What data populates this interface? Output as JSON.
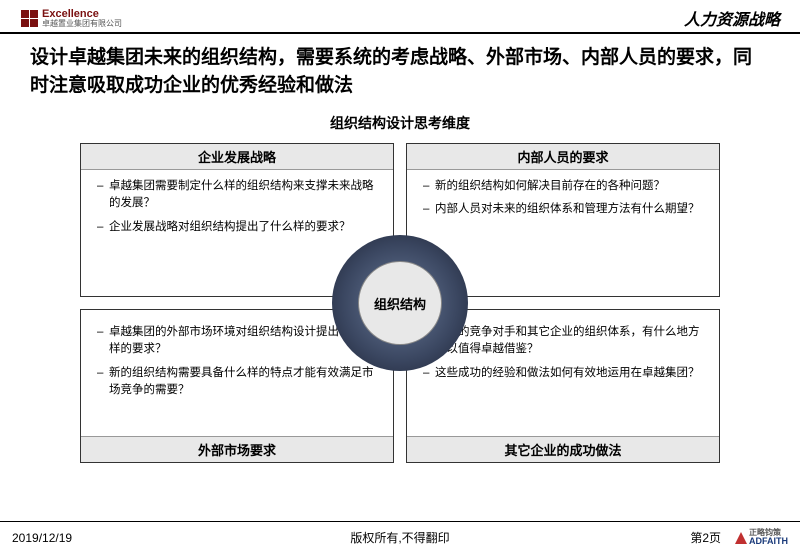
{
  "header": {
    "logo_en": "Excellence",
    "logo_cn": "卓越置业集团有限公司",
    "right_title": "人力资源战略"
  },
  "title": "设计卓越集团未来的组织结构，需要系统的考虑战略、外部市场、内部人员的要求，同时注意吸取成功企业的优秀经验和做法",
  "subtitle": "组织结构设计思考维度",
  "center_label": "组织结构",
  "quads": {
    "tl": {
      "header": "企业发展战略",
      "items": [
        "卓越集团需要制定什么样的组织结构来支撑未来战略的发展？",
        "企业发展战略对组织结构提出了什么样的要求？"
      ]
    },
    "tr": {
      "header": "内部人员的要求",
      "items": [
        "新的组织结构如何解决目前存在的各种问题？",
        "内部人员对未来的组织体系和管理方法有什么期望？"
      ]
    },
    "bl": {
      "header": "外部市场要求",
      "items": [
        "卓越集团的外部市场环境对组织结构设计提出了什么样的要求？",
        "新的组织结构需要具备什么样的特点才能有效满足市场竞争的需要？"
      ]
    },
    "br": {
      "header": "其它企业的成功做法",
      "items": [
        "卓越的竞争对手和其它企业的组织体系，有什么地方可以值得卓越借鉴？",
        "这些成功的经验和做法如何有效地运用在卓越集团？"
      ]
    }
  },
  "footer": {
    "date": "2019/12/19",
    "copyright": "版权所有,不得翻印",
    "page": "第2页",
    "adfaith_en": "ADFAITH",
    "adfaith_cn": "正略钧策"
  },
  "colors": {
    "brand_red": "#7a1010",
    "circle_dark": "#1c2233",
    "circle_mid": "#3a4660",
    "quad_header_bg": "#e8e8e8"
  }
}
